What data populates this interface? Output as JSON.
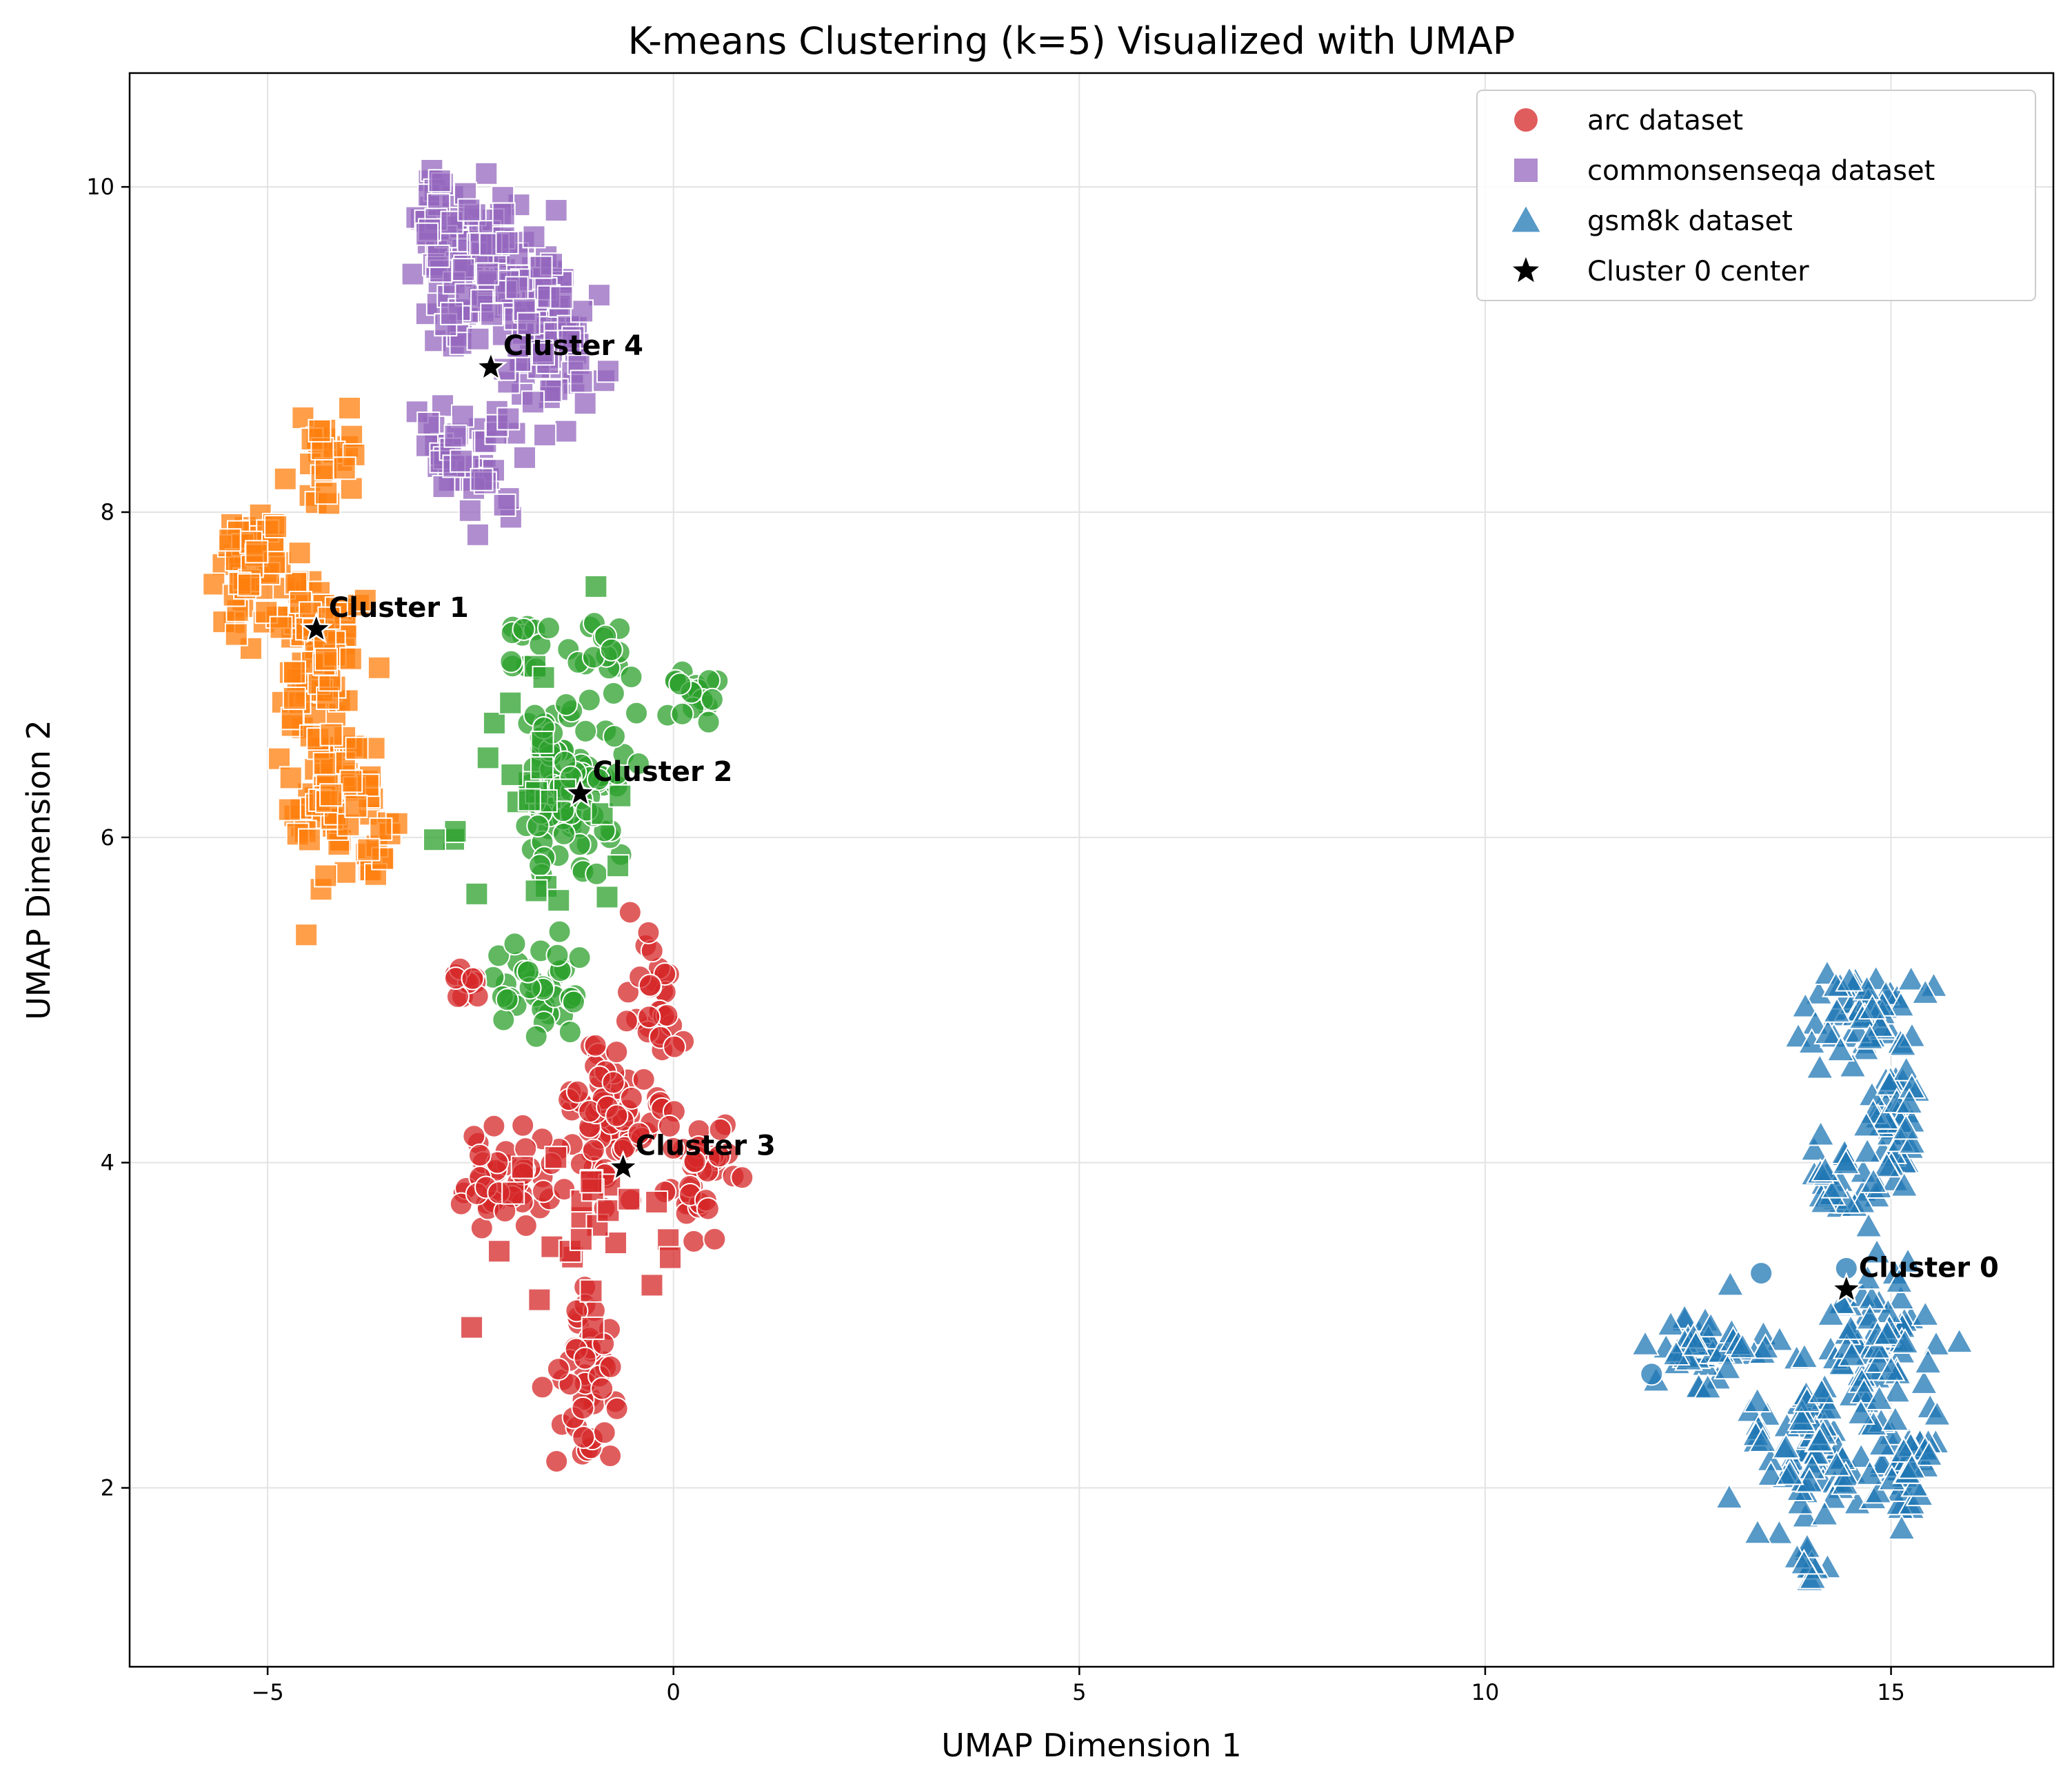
{
  "chart_data": {
    "type": "scatter",
    "title": "K-means Clustering (k=5) Visualized with UMAP",
    "xlabel": "UMAP Dimension 1",
    "ylabel": "UMAP Dimension 2",
    "xlim": [
      -6.7,
      17.0
    ],
    "ylim": [
      0.9,
      10.7
    ],
    "xticks": [
      -5,
      0,
      5,
      10,
      15
    ],
    "yticks": [
      2,
      4,
      6,
      8,
      10
    ],
    "xtick_labels": [
      "−5",
      "0",
      "5",
      "10",
      "15"
    ],
    "ytick_labels": [
      "2",
      "4",
      "6",
      "8",
      "10"
    ],
    "grid": true,
    "legend_position": "top-right",
    "cluster_colors": [
      "#1f77b4",
      "#ff7f0e",
      "#2ca02c",
      "#d62728",
      "#9467bd"
    ],
    "legend": [
      {
        "label": "arc dataset",
        "marker": "circle",
        "color": "#d62728"
      },
      {
        "label": "commonsenseqa dataset",
        "marker": "square",
        "color": "#9467bd"
      },
      {
        "label": "gsm8k dataset",
        "marker": "triangle",
        "color": "#1f77b4"
      },
      {
        "label": "Cluster 0 center",
        "marker": "star",
        "color": "#000000"
      }
    ],
    "centers": [
      {
        "label": "Cluster 0",
        "x": 14.45,
        "y": 3.22
      },
      {
        "label": "Cluster 1",
        "x": -4.4,
        "y": 7.28
      },
      {
        "label": "Cluster 2",
        "x": -1.15,
        "y": 6.27
      },
      {
        "label": "Cluster 3",
        "x": -0.62,
        "y": 3.97
      },
      {
        "label": "Cluster 4",
        "x": -2.25,
        "y": 8.89
      }
    ],
    "groups": [
      {
        "dataset": "commonsenseqa",
        "marker": "square",
        "cluster": 4,
        "n": 240,
        "regions": [
          [
            -2.3,
            9.4,
            0.7,
            0.45
          ],
          [
            -1.5,
            9.1,
            0.5,
            0.4
          ],
          [
            -2.9,
            9.8,
            0.25,
            0.3
          ],
          [
            -2.5,
            8.3,
            0.6,
            0.35
          ]
        ]
      },
      {
        "dataset": "commonsenseqa",
        "marker": "square",
        "cluster": 1,
        "n": 230,
        "regions": [
          [
            -5.2,
            7.7,
            0.35,
            0.3
          ],
          [
            -4.4,
            7.2,
            0.5,
            0.45
          ],
          [
            -4.2,
            6.3,
            0.45,
            0.4
          ],
          [
            -4.3,
            8.3,
            0.35,
            0.25
          ],
          [
            -3.7,
            5.9,
            0.2,
            0.2
          ]
        ]
      },
      {
        "dataset": "arc",
        "marker": "circle",
        "cluster": 2,
        "n": 175,
        "regions": [
          [
            -1.2,
            6.3,
            0.55,
            0.45
          ],
          [
            0.3,
            6.9,
            0.25,
            0.15
          ],
          [
            -1.7,
            5.1,
            0.45,
            0.25
          ],
          [
            -0.9,
            7.2,
            0.25,
            0.2
          ],
          [
            -1.8,
            7.2,
            0.2,
            0.2
          ]
        ]
      },
      {
        "dataset": "commonsenseqa",
        "marker": "square",
        "cluster": 2,
        "n": 26,
        "regions": [
          [
            -1.6,
            6.2,
            0.8,
            0.6
          ]
        ]
      },
      {
        "dataset": "arc",
        "marker": "circle",
        "cluster": 3,
        "n": 235,
        "regions": [
          [
            -0.8,
            4.3,
            0.65,
            0.35
          ],
          [
            -2.0,
            3.9,
            0.45,
            0.3
          ],
          [
            0.4,
            3.9,
            0.35,
            0.35
          ],
          [
            -0.3,
            5.0,
            0.3,
            0.35
          ],
          [
            -1.1,
            2.6,
            0.3,
            0.45
          ],
          [
            -2.6,
            5.1,
            0.3,
            0.15
          ]
        ]
      },
      {
        "dataset": "commonsenseqa",
        "marker": "square",
        "cluster": 3,
        "n": 26,
        "regions": [
          [
            -1.0,
            3.6,
            1.0,
            0.6
          ]
        ]
      },
      {
        "dataset": "gsm8k",
        "marker": "triangle",
        "cluster": 0,
        "n": 380,
        "regions": [
          [
            14.6,
            4.9,
            0.6,
            0.25
          ],
          [
            15.0,
            4.2,
            0.35,
            0.35
          ],
          [
            14.3,
            3.9,
            0.3,
            0.3
          ],
          [
            12.8,
            2.85,
            0.55,
            0.2
          ],
          [
            14.9,
            2.9,
            0.6,
            0.35
          ],
          [
            14.0,
            2.2,
            0.6,
            0.35
          ],
          [
            15.2,
            2.1,
            0.4,
            0.3
          ],
          [
            14.0,
            1.5,
            0.15,
            0.15
          ]
        ]
      },
      {
        "dataset": "arc",
        "marker": "circle",
        "cluster": 0,
        "n": 3,
        "points": [
          [
            14.45,
            3.35
          ],
          [
            13.4,
            3.32
          ],
          [
            12.05,
            2.7
          ]
        ]
      }
    ]
  }
}
